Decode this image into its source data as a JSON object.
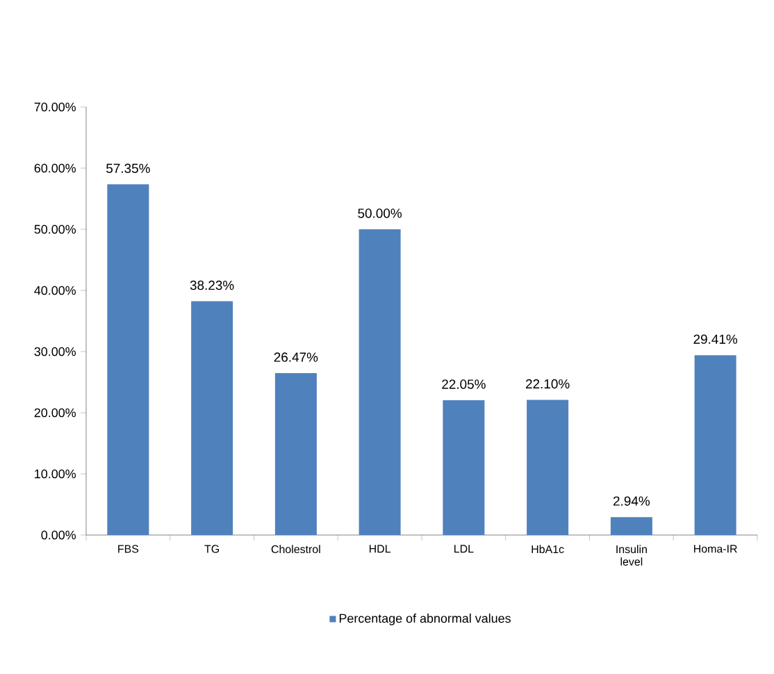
{
  "chart_data": {
    "type": "bar",
    "categories": [
      "FBS",
      "TG",
      "Cholestrol",
      "HDL",
      "LDL",
      "HbA1c",
      "Insulin level",
      "Homa-IR"
    ],
    "series": [
      {
        "name": "Percentage of abnormal values",
        "color": "#4f81bd",
        "values": [
          57.35,
          38.23,
          26.47,
          50.0,
          22.05,
          22.1,
          2.94,
          29.41
        ],
        "value_labels": [
          "57.35%",
          "38.23%",
          "26.47%",
          "50.00%",
          "22.05%",
          "22.10%",
          "2.94%",
          "29.41%"
        ]
      }
    ],
    "ylim": [
      0,
      70
    ],
    "yticks": [
      {
        "value": 0,
        "label": "0.00%"
      },
      {
        "value": 10,
        "label": "10.00%"
      },
      {
        "value": 20,
        "label": "20.00%"
      },
      {
        "value": 30,
        "label": "30.00%"
      },
      {
        "value": 40,
        "label": "40.00%"
      },
      {
        "value": 50,
        "label": "50.00%"
      },
      {
        "value": 60,
        "label": "60.00%"
      },
      {
        "value": 70,
        "label": "70.00%"
      }
    ],
    "legend": "bottom"
  }
}
